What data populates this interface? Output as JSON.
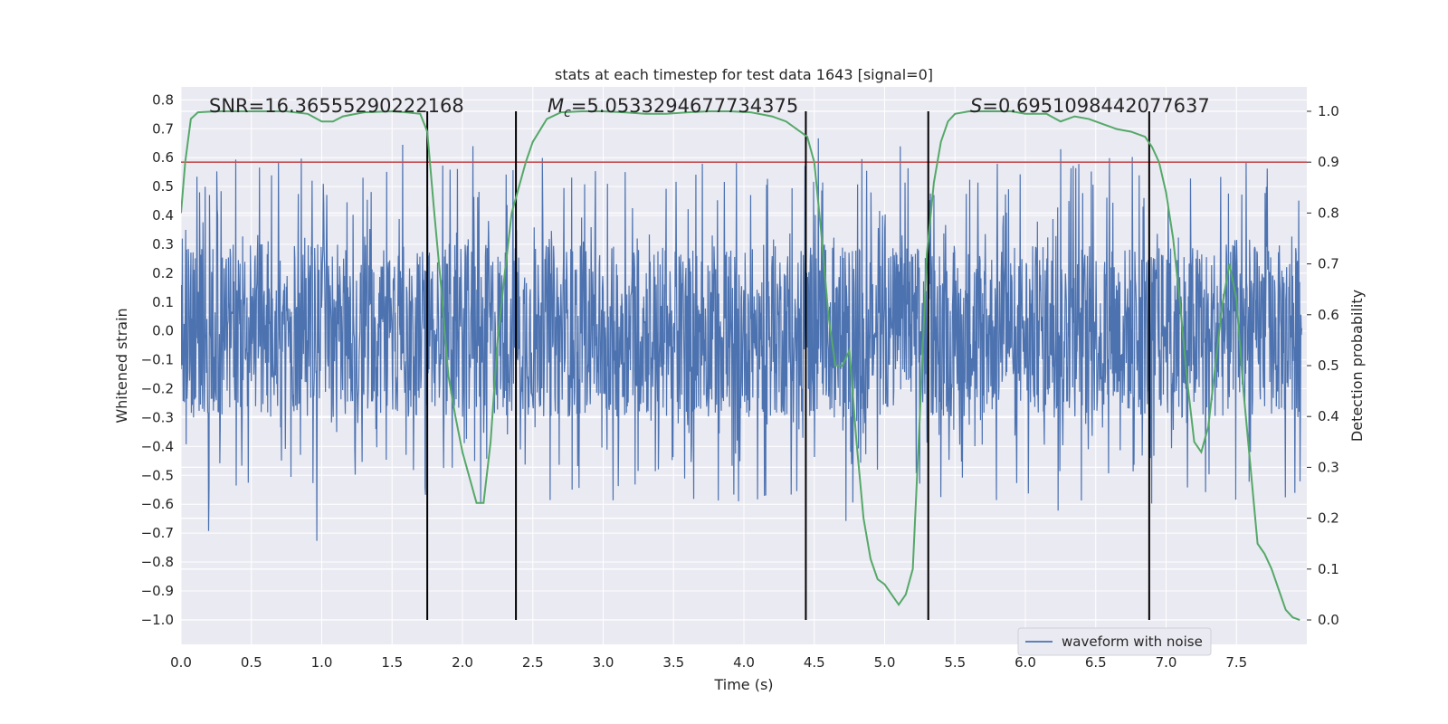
{
  "chart_data": {
    "type": "line",
    "title": "stats at each timestep for test data 1643 [signal=0]",
    "xlabel": "Time (s)",
    "ylabel": "Whitened strain",
    "y2label": "Detection probability",
    "xlim": [
      0,
      8
    ],
    "ylim": [
      -1.085,
      0.845
    ],
    "y2lim": [
      -0.048,
      1.048
    ],
    "xticks": [
      0.0,
      0.5,
      1.0,
      1.5,
      2.0,
      2.5,
      3.0,
      3.5,
      4.0,
      4.5,
      5.0,
      5.5,
      6.0,
      6.5,
      7.0,
      7.5
    ],
    "xtick_labels": [
      "0.0",
      "0.5",
      "1.0",
      "1.5",
      "2.0",
      "2.5",
      "3.0",
      "3.5",
      "4.0",
      "4.5",
      "5.0",
      "5.5",
      "6.0",
      "6.5",
      "7.0",
      "7.5"
    ],
    "yticks": [
      0.8,
      0.7,
      0.6,
      0.5,
      0.4,
      0.3,
      0.2,
      0.1,
      0.0,
      -0.1,
      -0.2,
      -0.3,
      -0.4,
      -0.5,
      -0.6,
      -0.7,
      -0.8,
      -0.9,
      -1.0
    ],
    "ytick_labels": [
      "0.8",
      "0.7",
      "0.6",
      "0.5",
      "0.4",
      "0.3",
      "0.2",
      "0.1",
      "0.0",
      "−0.1",
      "−0.2",
      "−0.3",
      "−0.4",
      "−0.5",
      "−0.6",
      "−0.7",
      "−0.8",
      "−0.9",
      "−1.0"
    ],
    "y2ticks": [
      1.0,
      0.9,
      0.8,
      0.7,
      0.6,
      0.5,
      0.4,
      0.3,
      0.2,
      0.1,
      0.0
    ],
    "y2tick_labels": [
      "1.0",
      "0.9",
      "0.8",
      "0.7",
      "0.6",
      "0.5",
      "0.4",
      "0.3",
      "0.2",
      "0.1",
      "0.0"
    ],
    "grid": true,
    "legend_position": "bottom-right",
    "annotations": {
      "snr": "SNR=16.36555290222168",
      "mc_symbol": "M",
      "mc_sub": "c",
      "mc_value": "=5.0533294677734375",
      "s_symbol": "S",
      "s_value": "=0.6951098442077637"
    },
    "colors": {
      "background": "#eaeaf2",
      "grid": "#ffffff",
      "waveform": "#4c72b0",
      "probability": "#55a868",
      "threshold": "#c44e52",
      "segment_lines": "#000000"
    },
    "series": [
      {
        "name": "waveform with noise",
        "kind": "noise-waveform",
        "core_amplitude": 0.3,
        "spike_range": [
          -0.86,
          0.76
        ]
      }
    ],
    "threshold": 0.9,
    "segment_boundaries": [
      1.75,
      2.38,
      4.44,
      5.31,
      6.88
    ],
    "probability": {
      "x": [
        0.0,
        0.03,
        0.07,
        0.12,
        0.25,
        0.5,
        0.75,
        0.9,
        1.0,
        1.08,
        1.15,
        1.3,
        1.5,
        1.6,
        1.7,
        1.75,
        1.8,
        1.85,
        1.9,
        1.95,
        2.0,
        2.05,
        2.1,
        2.15,
        2.2,
        2.25,
        2.3,
        2.35,
        2.4,
        2.45,
        2.5,
        2.6,
        2.7,
        2.85,
        3.0,
        3.15,
        3.3,
        3.45,
        3.6,
        3.75,
        3.9,
        4.05,
        4.2,
        4.3,
        4.4,
        4.45,
        4.5,
        4.55,
        4.6,
        4.65,
        4.7,
        4.75,
        4.8,
        4.85,
        4.9,
        4.95,
        5.0,
        5.05,
        5.1,
        5.15,
        5.2,
        5.25,
        5.3,
        5.35,
        5.4,
        5.45,
        5.5,
        5.6,
        5.75,
        5.9,
        6.0,
        6.15,
        6.25,
        6.35,
        6.45,
        6.55,
        6.65,
        6.75,
        6.85,
        6.9,
        6.95,
        7.0,
        7.05,
        7.1,
        7.15,
        7.2,
        7.25,
        7.3,
        7.35,
        7.4,
        7.45,
        7.5,
        7.55,
        7.6,
        7.65,
        7.7,
        7.75,
        7.8,
        7.85,
        7.9,
        7.95
      ],
      "y": [
        0.8,
        0.9,
        0.985,
        0.998,
        1.0,
        1.0,
        1.0,
        0.995,
        0.98,
        0.98,
        0.99,
        0.998,
        1.0,
        0.998,
        0.995,
        0.96,
        0.8,
        0.65,
        0.48,
        0.4,
        0.33,
        0.28,
        0.23,
        0.23,
        0.35,
        0.55,
        0.68,
        0.8,
        0.85,
        0.9,
        0.94,
        0.985,
        0.998,
        1.0,
        1.0,
        0.998,
        0.995,
        0.995,
        0.998,
        1.0,
        1.0,
        0.998,
        0.99,
        0.98,
        0.96,
        0.95,
        0.9,
        0.76,
        0.6,
        0.5,
        0.5,
        0.53,
        0.35,
        0.2,
        0.12,
        0.08,
        0.07,
        0.05,
        0.03,
        0.05,
        0.1,
        0.4,
        0.72,
        0.86,
        0.94,
        0.98,
        0.995,
        1.0,
        1.0,
        1.0,
        0.995,
        0.995,
        0.98,
        0.99,
        0.985,
        0.975,
        0.965,
        0.96,
        0.95,
        0.93,
        0.9,
        0.84,
        0.75,
        0.62,
        0.47,
        0.35,
        0.33,
        0.38,
        0.5,
        0.62,
        0.7,
        0.63,
        0.45,
        0.3,
        0.15,
        0.13,
        0.1,
        0.06,
        0.02,
        0.005,
        0.0
      ]
    }
  }
}
